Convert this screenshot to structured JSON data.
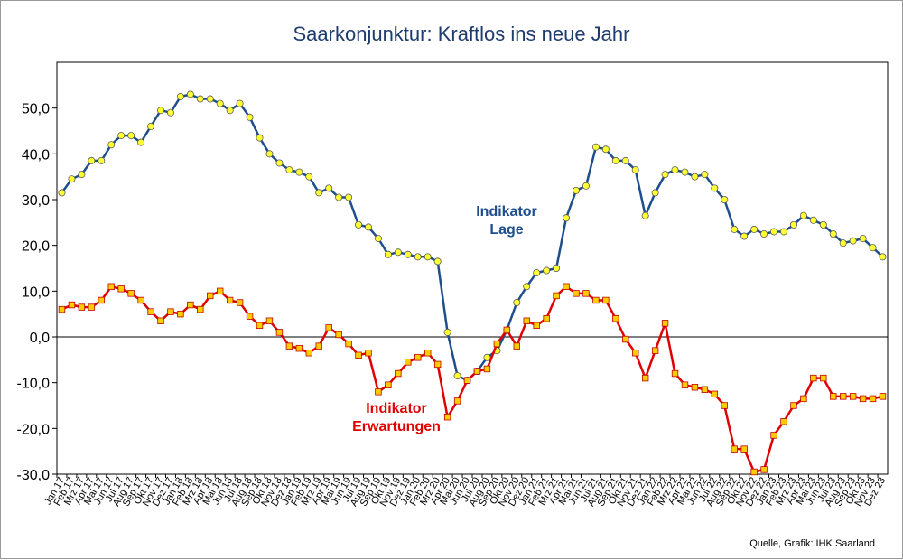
{
  "chart_data": {
    "type": "line",
    "title": "Saarkonjunktur: Kraftlos ins neue Jahr",
    "source": "Quelle, Grafik: IHK Saarland",
    "ylim": [
      -30,
      60
    ],
    "y_ticks": [
      "-30,0",
      "-20,0",
      "-10,0",
      "0,0",
      "10,0",
      "20,0",
      "30,0",
      "40,0",
      "50,0"
    ],
    "y_tick_values": [
      -30,
      -20,
      -10,
      0,
      10,
      20,
      30,
      40,
      50
    ],
    "grid": false,
    "zero_line": true,
    "categories": [
      "Jan 17",
      "Feb 17",
      "Mrz 17",
      "Apr 17",
      "Mai 17",
      "Jun 17",
      "Jul 17",
      "Aug 17",
      "Sep 17",
      "Okt 17",
      "Nov 17",
      "Dez 17",
      "Jan 18",
      "Feb 18",
      "Mrz 18",
      "Apr 18",
      "Mai 18",
      "Jun 18",
      "Jul 18",
      "Aug 18",
      "Sep 18",
      "Okt 18",
      "Nov 18",
      "Dez 18",
      "Jan 19",
      "Feb 19",
      "Mrz 19",
      "Apr 19",
      "Mai 19",
      "Jun 19",
      "Jul 19",
      "Aug 19",
      "Sep 19",
      "Okt 19",
      "Nov 19",
      "Dez 19",
      "Jan 20",
      "Feb 20",
      "Mrz 20",
      "Apr 20",
      "Mai 20",
      "Jun 20",
      "Jul 20",
      "Aug 20",
      "Sep 20",
      "Okt 20",
      "Nov 20",
      "Dez 20",
      "Jan 21",
      "Feb 21",
      "Mrz 21",
      "Apr 21",
      "Mai 21",
      "Jun 21",
      "Jul 21",
      "Aug 21",
      "Sep 21",
      "Okt 21",
      "Nov 21",
      "Dez 21",
      "Jan 22",
      "Feb 22",
      "Mrz 22",
      "Apr 22",
      "Mai 22",
      "Jun 22",
      "Jul 22",
      "Aug 22",
      "Sep 22",
      "Okt 22",
      "Nov 22",
      "Dez 22",
      "Jan 23",
      "Feb 23",
      "Mrz 23",
      "Apr 23",
      "Mai 23",
      "Jun 23",
      "Jul 23",
      "Aug 23",
      "Sep 23",
      "Okt 23",
      "Nov 23",
      "Dez 23"
    ],
    "series": [
      {
        "name": "Indikator Lage",
        "color": "#1f4e8c",
        "marker_fill": "#ffff33",
        "marker": "circle",
        "values": [
          31.5,
          34.5,
          35.5,
          38.5,
          38.5,
          42,
          44,
          44,
          42.5,
          46,
          49.5,
          49,
          52.5,
          53,
          52,
          52,
          51,
          49.5,
          51,
          48,
          43.5,
          40,
          38,
          36.5,
          36,
          35,
          31.5,
          32.5,
          30.5,
          30.5,
          24.5,
          24,
          21.5,
          18,
          18.5,
          18,
          17.5,
          17.5,
          16.5,
          1,
          -8.5,
          -9.5,
          -7.5,
          -4.5,
          -3,
          1.5,
          7.5,
          11,
          14,
          14.5,
          15,
          26,
          32,
          33,
          41.5,
          41,
          38.5,
          38.5,
          36.5,
          26.5,
          31.5,
          35.5,
          36.5,
          36,
          35,
          35.5,
          32.5,
          30,
          23.5,
          22,
          23.5,
          22.5,
          23,
          23,
          24.5,
          26.5,
          25.5,
          24.5,
          22.5,
          20.5,
          21,
          21.5,
          19.5,
          17.5
        ]
      },
      {
        "name": "Indikator Erwartungen",
        "color": "#e00000",
        "marker_fill": "#ffcc00",
        "marker": "square",
        "values": [
          6,
          7,
          6.5,
          6.5,
          8,
          11,
          10.5,
          9.5,
          8,
          5.5,
          3.5,
          5.5,
          5,
          7,
          6,
          9,
          10,
          8,
          7.5,
          4.5,
          2.5,
          3.5,
          1,
          -2,
          -2.5,
          -3.5,
          -2,
          2,
          0.5,
          -1.5,
          -4,
          -3.5,
          -12,
          -10.5,
          -8,
          -5.5,
          -4.5,
          -3.5,
          -6,
          -17.5,
          -14,
          -9.5,
          -7.5,
          -7,
          -1.5,
          1.5,
          -2,
          3.5,
          2.5,
          4,
          9,
          11,
          9.5,
          9.5,
          8,
          8,
          4,
          -0.5,
          -3.5,
          -9,
          -3,
          3,
          -8,
          -10.5,
          -11,
          -11.5,
          -12.5,
          -15,
          -24.5,
          -24.5,
          -29.5,
          -29,
          -21.5,
          -18.5,
          -15,
          -13.5,
          -9,
          -9,
          -13,
          -13,
          -13,
          -13.5,
          -13.5,
          -13
        ]
      }
    ],
    "annotations": {
      "lage_line1": "Indikator",
      "lage_line2": "Lage",
      "erw_line1": "Indikator",
      "erw_line2": "Erwartungen"
    }
  }
}
